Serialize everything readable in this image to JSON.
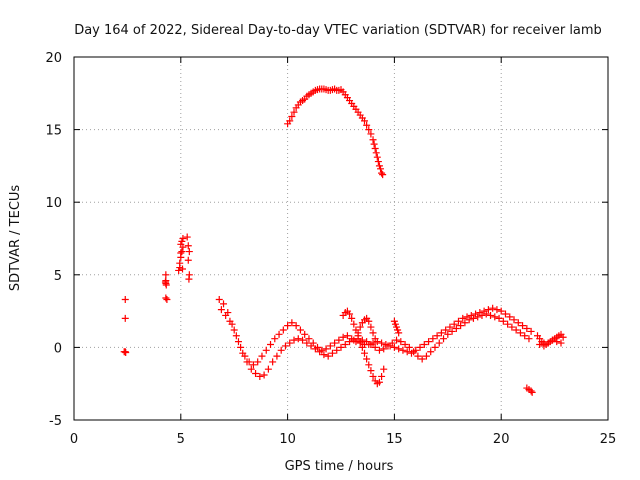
{
  "chart_data": {
    "type": "scatter",
    "title": "Day 164 of 2022, Sidereal Day-to-day VTEC variation (SDTVAR) for receiver lamb",
    "xlabel": "GPS time / hours",
    "ylabel": "SDTVAR / TECUs",
    "xlim": [
      0,
      25
    ],
    "ylim": [
      -5,
      20
    ],
    "xticks": [
      0,
      5,
      10,
      15,
      20,
      25
    ],
    "yticks": [
      -5,
      0,
      5,
      10,
      15,
      20
    ],
    "grid": true,
    "marker": "+",
    "marker_color": "#ff0000",
    "series": [
      {
        "name": "SDTVAR",
        "x": [
          2.4,
          2.4,
          2.4,
          2.35,
          2.42,
          4.3,
          4.3,
          4.3,
          4.32,
          4.28,
          4.35,
          4.3,
          4.9,
          4.95,
          5.0,
          5.05,
          5.1,
          5.0,
          5.05,
          5.1,
          4.95,
          5.0,
          5.08,
          5.3,
          5.35,
          5.4,
          5.35,
          5.4,
          5.38,
          10.0,
          10.1,
          10.2,
          10.3,
          10.4,
          10.5,
          10.6,
          10.7,
          10.8,
          10.9,
          11.0,
          11.1,
          11.2,
          11.3,
          11.4,
          11.5,
          11.6,
          11.7,
          11.8,
          11.9,
          12.0,
          12.1,
          12.2,
          12.3,
          12.4,
          12.5,
          12.6,
          12.7,
          12.8,
          12.9,
          13.0,
          13.1,
          13.2,
          13.3,
          13.4,
          13.5,
          13.6,
          13.7,
          13.8,
          13.9,
          14.0,
          14.05,
          14.1,
          14.15,
          14.2,
          14.25,
          14.3,
          14.35,
          14.4,
          14.45,
          6.8,
          7.0,
          7.2,
          7.4,
          7.6,
          7.8,
          8.0,
          8.2,
          8.4,
          8.6,
          8.8,
          9.0,
          9.2,
          9.4,
          9.6,
          9.8,
          10.0,
          10.2,
          10.4,
          10.6,
          10.8,
          11.0,
          11.2,
          11.4,
          11.6,
          11.8,
          12.0,
          12.2,
          12.4,
          12.6,
          12.8,
          13.0,
          13.2,
          13.4,
          13.6,
          13.8,
          14.0,
          14.2,
          14.4,
          14.6,
          14.8,
          15.0,
          15.2,
          15.4,
          15.6,
          15.8,
          16.0,
          16.2,
          16.4,
          16.6,
          16.8,
          17.0,
          17.2,
          17.4,
          17.6,
          17.8,
          18.0,
          18.2,
          18.4,
          18.6,
          18.8,
          19.0,
          19.2,
          19.4,
          19.6,
          19.8,
          20.0,
          20.2,
          20.4,
          20.6,
          20.8,
          21.0,
          21.2,
          21.4,
          6.9,
          7.1,
          7.3,
          7.5,
          7.7,
          7.9,
          8.1,
          8.3,
          8.5,
          8.7,
          8.9,
          9.1,
          9.3,
          9.5,
          9.7,
          9.9,
          10.1,
          10.3,
          10.5,
          10.7,
          10.9,
          11.1,
          11.3,
          11.5,
          11.7,
          11.9,
          12.1,
          12.3,
          12.5,
          12.7,
          12.9,
          13.1,
          13.3,
          13.5,
          13.7,
          13.9,
          14.1,
          14.3,
          14.5,
          14.7,
          14.9,
          15.1,
          15.3,
          15.5,
          15.7,
          15.9,
          16.1,
          16.3,
          16.5,
          16.7,
          16.9,
          17.1,
          17.3,
          17.5,
          17.7,
          17.9,
          18.1,
          18.3,
          18.5,
          18.7,
          18.9,
          19.1,
          19.3,
          19.5,
          19.7,
          19.9,
          20.1,
          20.3,
          20.5,
          20.7,
          20.9,
          21.1,
          21.3,
          12.6,
          12.7,
          12.8,
          12.9,
          13.0,
          13.1,
          13.2,
          13.3,
          13.4,
          13.5,
          13.6,
          13.7,
          13.8,
          13.9,
          14.0,
          14.1,
          14.2,
          14.3,
          14.4,
          14.5,
          13.3,
          13.4,
          13.5,
          13.6,
          13.7,
          13.8,
          13.9,
          14.0,
          14.1,
          15.0,
          15.05,
          15.1,
          15.15,
          15.2,
          21.2,
          21.3,
          21.4,
          21.45,
          21.7,
          21.8,
          21.9,
          22.0,
          22.1,
          22.2,
          22.3,
          22.4,
          22.5,
          22.6,
          22.7,
          22.8,
          22.9,
          21.8,
          22.0,
          22.2,
          22.4,
          22.6,
          22.8
        ],
        "y": [
          3.3,
          2.0,
          -0.3,
          -0.3,
          -0.35,
          5.0,
          4.6,
          4.4,
          4.3,
          4.5,
          3.3,
          3.4,
          5.3,
          5.5,
          6.2,
          6.6,
          6.9,
          7.1,
          7.3,
          7.5,
          5.8,
          6.5,
          5.4,
          7.6,
          7.0,
          6.6,
          6.0,
          5.0,
          4.7,
          15.4,
          15.6,
          15.9,
          16.2,
          16.5,
          16.7,
          16.9,
          17.0,
          17.1,
          17.3,
          17.4,
          17.5,
          17.6,
          17.7,
          17.75,
          17.8,
          17.8,
          17.8,
          17.75,
          17.7,
          17.7,
          17.75,
          17.8,
          17.7,
          17.7,
          17.75,
          17.6,
          17.4,
          17.2,
          17.0,
          16.8,
          16.6,
          16.4,
          16.2,
          16.0,
          15.8,
          15.6,
          15.3,
          15.0,
          14.7,
          14.3,
          14.0,
          13.7,
          13.4,
          13.1,
          12.8,
          12.5,
          12.3,
          12.0,
          11.9,
          3.3,
          3.0,
          2.4,
          1.6,
          0.8,
          0.0,
          -0.6,
          -1.0,
          -1.2,
          -1.0,
          -0.6,
          -0.2,
          0.2,
          0.6,
          0.9,
          1.2,
          1.5,
          1.7,
          1.5,
          1.2,
          0.9,
          0.6,
          0.3,
          0.0,
          -0.2,
          -0.1,
          0.1,
          0.3,
          0.5,
          0.7,
          0.8,
          0.6,
          0.4,
          0.3,
          0.2,
          0.2,
          0.3,
          0.4,
          0.3,
          0.2,
          0.1,
          0.0,
          -0.1,
          -0.2,
          -0.3,
          -0.4,
          -0.2,
          0.0,
          0.2,
          0.4,
          0.6,
          0.8,
          1.0,
          1.2,
          1.4,
          1.6,
          1.8,
          2.0,
          2.1,
          2.2,
          2.3,
          2.4,
          2.5,
          2.6,
          2.7,
          2.6,
          2.5,
          2.3,
          2.1,
          1.9,
          1.7,
          1.5,
          1.3,
          1.1,
          2.6,
          2.2,
          1.8,
          1.2,
          0.4,
          -0.4,
          -1.0,
          -1.5,
          -1.8,
          -2.0,
          -1.9,
          -1.5,
          -1.0,
          -0.6,
          -0.2,
          0.1,
          0.3,
          0.5,
          0.6,
          0.5,
          0.3,
          0.1,
          -0.1,
          -0.3,
          -0.5,
          -0.6,
          -0.4,
          -0.2,
          0.0,
          0.2,
          0.4,
          0.5,
          0.6,
          0.5,
          0.4,
          0.2,
          0.0,
          -0.2,
          -0.1,
          0.1,
          0.3,
          0.5,
          0.4,
          0.2,
          0.0,
          -0.3,
          -0.6,
          -0.8,
          -0.6,
          -0.3,
          0.0,
          0.3,
          0.6,
          0.9,
          1.1,
          1.3,
          1.5,
          1.7,
          1.9,
          2.0,
          2.1,
          2.2,
          2.3,
          2.2,
          2.1,
          2.0,
          1.8,
          1.6,
          1.4,
          1.2,
          1.0,
          0.8,
          0.6,
          2.2,
          2.4,
          2.5,
          2.3,
          2.0,
          1.6,
          1.2,
          0.8,
          0.4,
          0.0,
          -0.4,
          -0.8,
          -1.2,
          -1.6,
          -2.0,
          -2.3,
          -2.5,
          -2.4,
          -2.0,
          -1.5,
          1.0,
          1.4,
          1.7,
          1.9,
          2.0,
          1.8,
          1.4,
          1.0,
          0.6,
          1.8,
          1.6,
          1.4,
          1.2,
          1.0,
          -2.8,
          -2.9,
          -3.0,
          -3.1,
          0.8,
          0.6,
          0.4,
          0.3,
          0.2,
          0.3,
          0.4,
          0.5,
          0.6,
          0.7,
          0.8,
          0.9,
          0.7,
          0.2,
          0.1,
          0.3,
          0.5,
          0.4,
          0.3
        ]
      }
    ]
  }
}
